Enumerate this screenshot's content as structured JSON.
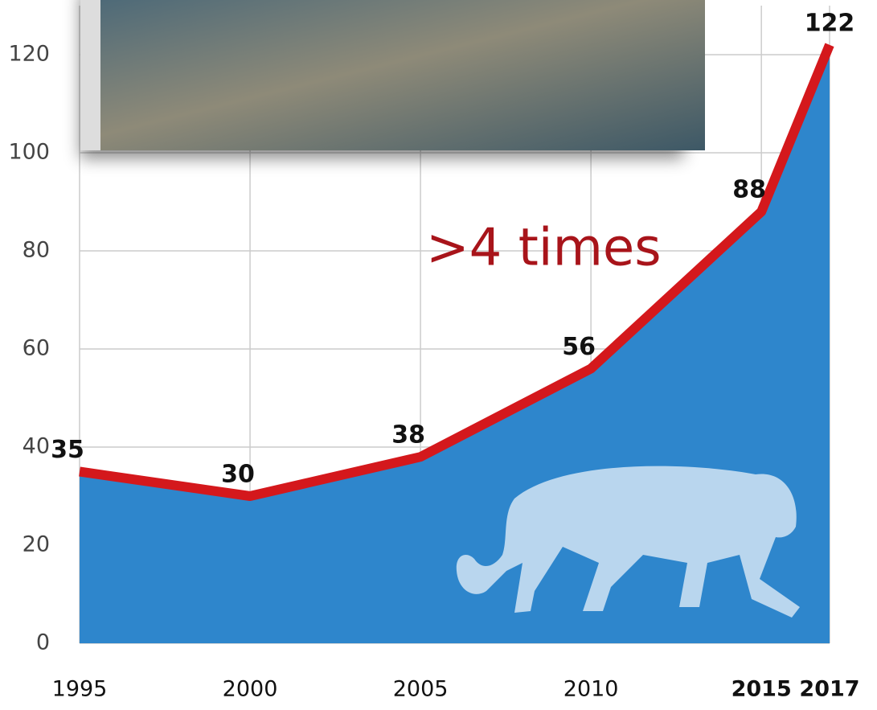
{
  "chart_data": {
    "type": "area",
    "annotation": ">4 times",
    "x": [
      1995,
      2000,
      2005,
      2010,
      2015,
      2017
    ],
    "values": [
      35,
      30,
      38,
      56,
      88,
      122
    ],
    "color": "#2e86cc",
    "line_color": "#d4181c",
    "xlim": [
      1995,
      2017
    ],
    "xticks": [
      1995,
      2000,
      2005,
      2010,
      2015,
      2017
    ],
    "ylim": [
      0,
      130
    ],
    "yticks": [
      0,
      20,
      40,
      60,
      80,
      100,
      120
    ],
    "grid": true
  }
}
